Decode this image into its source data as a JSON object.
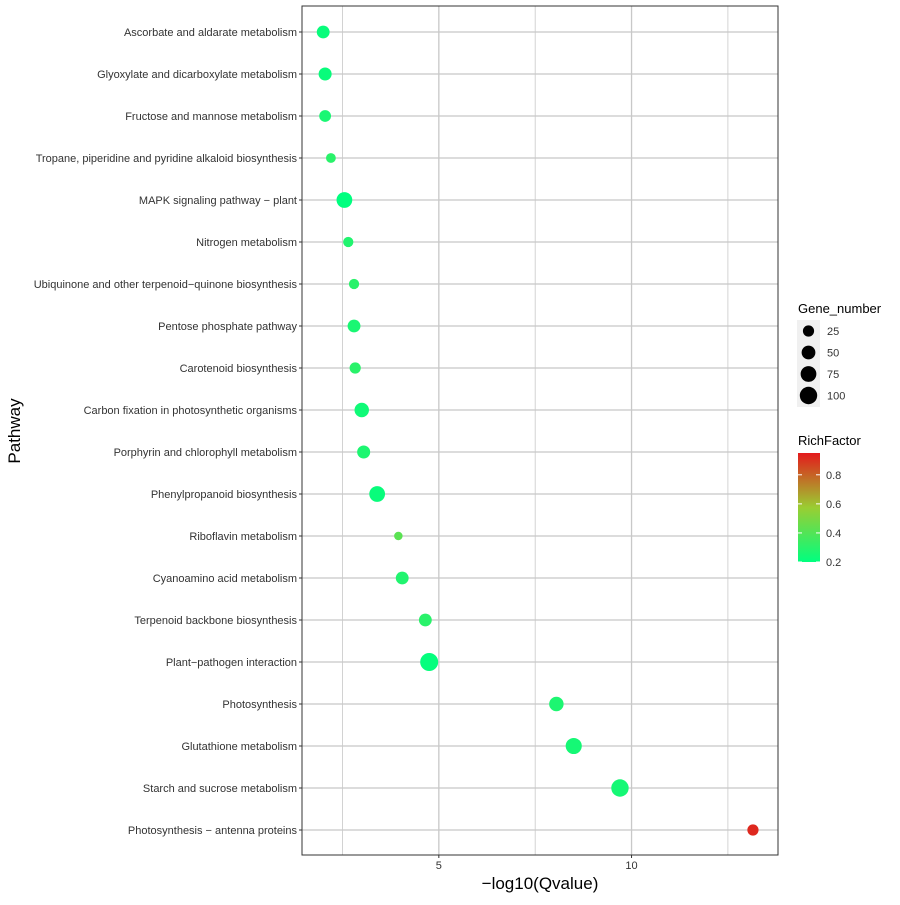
{
  "chart_data": {
    "type": "scatter",
    "title": "",
    "xlabel": "−log10(Qvalue)",
    "ylabel": "Pathway",
    "xlim": [
      1.45,
      13.8
    ],
    "x_ticks": [
      5,
      10
    ],
    "x_tick_labels": [
      "5",
      "10"
    ],
    "grid": true,
    "legend_position": "right",
    "categories": [
      "Ascorbate and aldarate metabolism",
      "Glyoxylate and dicarboxylate metabolism",
      "Fructose and mannose metabolism",
      "Tropane, piperidine and pyridine alkaloid biosynthesis",
      "MAPK signaling pathway − plant",
      "Nitrogen metabolism",
      "Ubiquinone and other terpenoid−quinone biosynthesis",
      "Pentose phosphate pathway",
      "Carotenoid biosynthesis",
      "Carbon fixation in photosynthetic organisms",
      "Porphyrin and chlorophyll metabolism",
      "Phenylpropanoid biosynthesis",
      "Riboflavin metabolism",
      "Cyanoamino acid metabolism",
      "Terpenoid backbone biosynthesis",
      "Plant−pathogen interaction",
      "Photosynthesis",
      "Glutathione metabolism",
      "Starch and sucrose metabolism",
      "Photosynthesis − antenna proteins"
    ],
    "points": [
      {
        "pathway": "Ascorbate and aldarate metabolism",
        "x": 2.0,
        "gene_number": 40,
        "rich_factor": 0.22
      },
      {
        "pathway": "Glyoxylate and dicarboxylate metabolism",
        "x": 2.05,
        "gene_number": 42,
        "rich_factor": 0.22
      },
      {
        "pathway": "Fructose and mannose metabolism",
        "x": 2.05,
        "gene_number": 30,
        "rich_factor": 0.26
      },
      {
        "pathway": "Tropane, piperidine and pyridine alkaloid biosynthesis",
        "x": 2.2,
        "gene_number": 15,
        "rich_factor": 0.3
      },
      {
        "pathway": "MAPK signaling pathway − plant",
        "x": 2.55,
        "gene_number": 75,
        "rich_factor": 0.2
      },
      {
        "pathway": "Nitrogen metabolism",
        "x": 2.65,
        "gene_number": 18,
        "rich_factor": 0.28
      },
      {
        "pathway": "Ubiquinone and other terpenoid−quinone biosynthesis",
        "x": 2.8,
        "gene_number": 18,
        "rich_factor": 0.3
      },
      {
        "pathway": "Pentose phosphate pathway",
        "x": 2.8,
        "gene_number": 40,
        "rich_factor": 0.26
      },
      {
        "pathway": "Carotenoid biosynthesis",
        "x": 2.83,
        "gene_number": 25,
        "rich_factor": 0.3
      },
      {
        "pathway": "Carbon fixation in photosynthetic organisms",
        "x": 3.0,
        "gene_number": 58,
        "rich_factor": 0.24
      },
      {
        "pathway": "Porphyrin and chlorophyll metabolism",
        "x": 3.05,
        "gene_number": 42,
        "rich_factor": 0.27
      },
      {
        "pathway": "Phenylpropanoid biosynthesis",
        "x": 3.4,
        "gene_number": 75,
        "rich_factor": 0.22
      },
      {
        "pathway": "Riboflavin metabolism",
        "x": 3.95,
        "gene_number": 8,
        "rich_factor": 0.42
      },
      {
        "pathway": "Cyanoamino acid metabolism",
        "x": 4.05,
        "gene_number": 40,
        "rich_factor": 0.28
      },
      {
        "pathway": "Terpenoid backbone biosynthesis",
        "x": 4.65,
        "gene_number": 40,
        "rich_factor": 0.3
      },
      {
        "pathway": "Plant−pathogen interaction",
        "x": 4.75,
        "gene_number": 110,
        "rich_factor": 0.21
      },
      {
        "pathway": "Photosynthesis",
        "x": 8.05,
        "gene_number": 58,
        "rich_factor": 0.27
      },
      {
        "pathway": "Glutathione metabolism",
        "x": 8.5,
        "gene_number": 80,
        "rich_factor": 0.25
      },
      {
        "pathway": "Starch and sucrose metabolism",
        "x": 9.7,
        "gene_number": 100,
        "rich_factor": 0.25
      },
      {
        "pathway": "Photosynthesis − antenna proteins",
        "x": 13.15,
        "gene_number": 25,
        "rich_factor": 0.92
      }
    ],
    "size_legend": {
      "title": "Gene_number",
      "values": [
        25,
        50,
        75,
        100
      ],
      "labels": [
        "25",
        "50",
        "75",
        "100"
      ]
    },
    "color_legend": {
      "title": "RichFactor",
      "min": 0.2,
      "max": 0.95,
      "ticks": [
        0.2,
        0.4,
        0.6,
        0.8
      ],
      "tick_labels": [
        "0.2",
        "0.4",
        "0.6",
        "0.8"
      ],
      "low_color": "#00ff7f",
      "high_color": "#e41a1c",
      "mid_color": "#9acd32"
    }
  }
}
